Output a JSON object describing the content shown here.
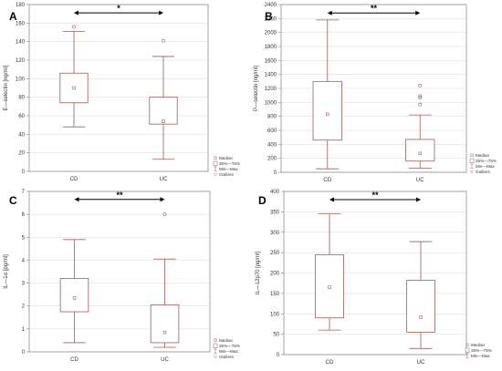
{
  "colors": {
    "box": "#a05a5a",
    "axis": "#8f8f8f",
    "grid": "#d8d8d8",
    "text": "#333333",
    "arrow": "#000000",
    "legend_outlier": "#c07070"
  },
  "chart_data": [
    {
      "type": "box",
      "panel_label": "A",
      "ylabel": "E—selectin [ng/ml]",
      "ylim": [
        0,
        180
      ],
      "yticks": [
        0,
        20,
        40,
        60,
        80,
        100,
        120,
        140,
        160,
        180
      ],
      "categories": [
        "CD",
        "UC"
      ],
      "boxes": [
        {
          "min": 48,
          "q1": 74,
          "median": 90,
          "q3": 106,
          "max": 151,
          "outliers": [
            156
          ]
        },
        {
          "min": 13,
          "q1": 51,
          "median": 54,
          "q3": 80,
          "max": 124,
          "outliers": [
            141
          ]
        }
      ],
      "significance": "*",
      "legend": [
        "Median",
        "25%—75%",
        "Min—Max",
        "Outliers"
      ],
      "grid": true
    },
    {
      "type": "box",
      "panel_label": "B",
      "ylabel": "P—selectin [ng/ml]",
      "ylim": [
        0,
        2400
      ],
      "yticks": [
        0,
        200,
        400,
        600,
        800,
        1000,
        1200,
        1400,
        1600,
        1800,
        2000,
        2200,
        2400
      ],
      "categories": [
        "CD",
        "UC"
      ],
      "boxes": [
        {
          "min": 50,
          "q1": 460,
          "median": 830,
          "q3": 1300,
          "max": 2180,
          "outliers": []
        },
        {
          "min": 60,
          "q1": 160,
          "median": 270,
          "q3": 470,
          "max": 820,
          "outliers": [
            970,
            1070,
            1090,
            1240
          ]
        }
      ],
      "significance": "**",
      "legend": [
        "Median",
        "25%—75%",
        "Min—Max",
        "Outliers"
      ],
      "grid": true
    },
    {
      "type": "box",
      "panel_label": "C",
      "ylabel": "IL—1α [pg/ml]",
      "ylim": [
        0,
        7
      ],
      "yticks": [
        0,
        1,
        2,
        3,
        4,
        5,
        6,
        7
      ],
      "categories": [
        "CD",
        "UC"
      ],
      "boxes": [
        {
          "min": 0.4,
          "q1": 1.75,
          "median": 2.35,
          "q3": 3.2,
          "max": 4.9,
          "outliers": []
        },
        {
          "min": 0.2,
          "q1": 0.4,
          "median": 0.85,
          "q3": 2.05,
          "max": 4.05,
          "outliers": [
            6.0
          ]
        }
      ],
      "significance": "**",
      "legend": [
        "Median",
        "25%—75%",
        "Min—Max",
        "Outliers"
      ],
      "grid": true
    },
    {
      "type": "box",
      "panel_label": "D",
      "ylabel": "IL—12p70 [pg/ml]",
      "ylim": [
        0,
        400
      ],
      "yticks": [
        0,
        50,
        100,
        150,
        200,
        250,
        300,
        350,
        400
      ],
      "categories": [
        "CD",
        "UC"
      ],
      "boxes": [
        {
          "min": 60,
          "q1": 90,
          "median": 165,
          "q3": 245,
          "max": 345,
          "outliers": []
        },
        {
          "min": 15,
          "q1": 55,
          "median": 92,
          "q3": 182,
          "max": 277,
          "outliers": []
        }
      ],
      "significance": "**",
      "legend": [
        "Median",
        "25%—75%",
        "Min—Max"
      ],
      "grid": true
    }
  ]
}
